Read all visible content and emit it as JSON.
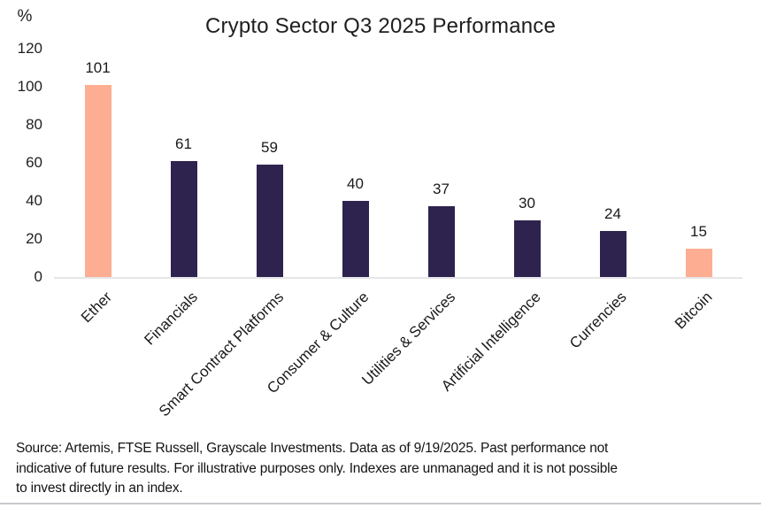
{
  "chart_data": {
    "type": "bar",
    "title": "Crypto Sector Q3 2025 Performance",
    "y_unit": "%",
    "categories": [
      "Ether",
      "Financials",
      "Smart Contract Platforms",
      "Consumer & Culture",
      "Utilities & Services",
      "Artificial Intelligence",
      "Currencies",
      "Bitcoin"
    ],
    "values": [
      101,
      61,
      59,
      40,
      37,
      30,
      24,
      15
    ],
    "bar_colors": [
      "#FCAD92",
      "#2E234F",
      "#2E234F",
      "#2E234F",
      "#2E234F",
      "#2E234F",
      "#2E234F",
      "#FCAD92"
    ],
    "yticks": [
      0,
      20,
      40,
      60,
      80,
      100,
      120
    ],
    "ylim": [
      0,
      120
    ],
    "grid": false,
    "legend": null,
    "data_labels": true,
    "x_label_rotation_deg": 45
  },
  "colors": {
    "highlight": "#FCAD92",
    "primary": "#2E234F",
    "axis_line": "#E6E6E8",
    "divider": "#C7C9CC",
    "text": "#1F1F1F"
  },
  "footer": {
    "source_text": "Source: Artemis, FTSE Russell, Grayscale Investments. Data as of 9/19/2025. Past performance not\nindicative of future results. For illustrative purposes only. Indexes are unmanaged and it is not possible\nto invest directly in an index."
  }
}
